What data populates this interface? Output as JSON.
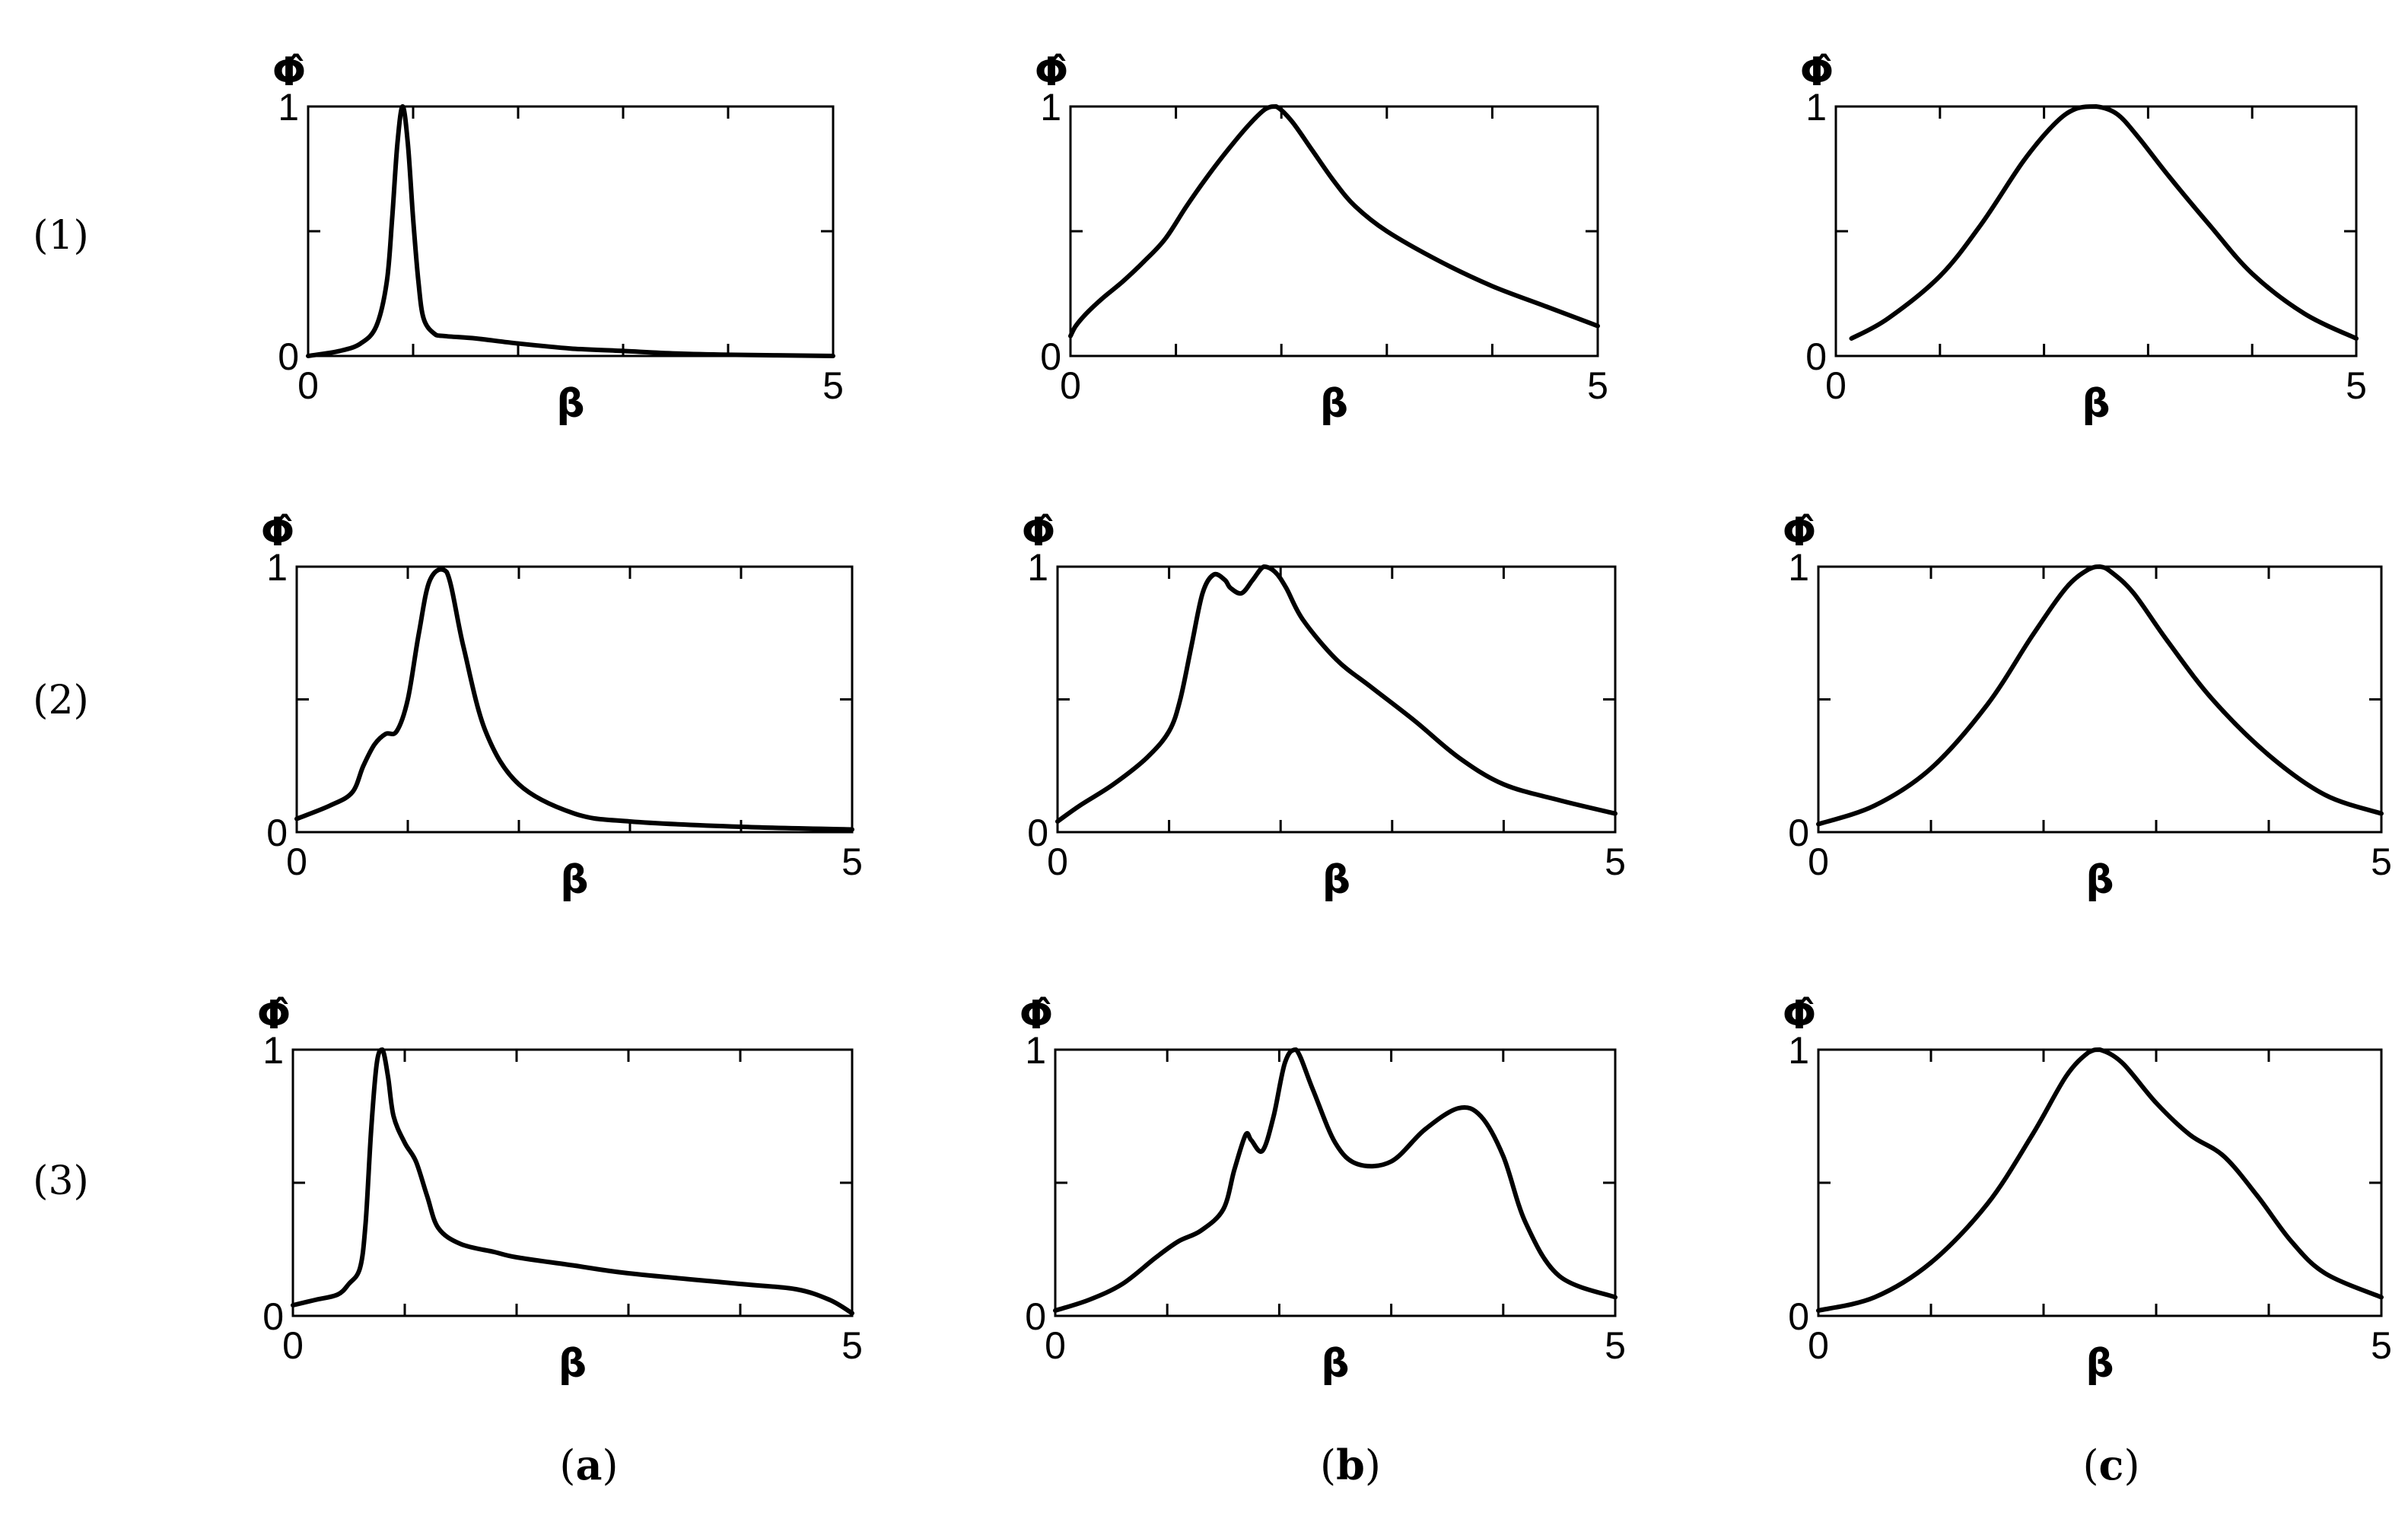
{
  "chart_data": [
    {
      "type": "line",
      "panel_row": "(1)",
      "panel_col": "(a)",
      "ylabel": "Φ̂",
      "xlabel": "β",
      "xlim": [
        0,
        5
      ],
      "ylim": [
        0,
        1
      ],
      "x": [
        0,
        0.3,
        0.5,
        0.65,
        0.75,
        0.8,
        0.85,
        0.9,
        0.95,
        1.0,
        1.05,
        1.1,
        1.2,
        1.3,
        1.6,
        2.0,
        2.5,
        3.0,
        3.5,
        4.0,
        5.0
      ],
      "y": [
        0.0,
        0.02,
        0.05,
        0.12,
        0.3,
        0.55,
        0.85,
        1.0,
        0.85,
        0.55,
        0.3,
        0.15,
        0.09,
        0.08,
        0.07,
        0.05,
        0.03,
        0.02,
        0.01,
        0.005,
        0.0
      ]
    },
    {
      "type": "line",
      "panel_row": "(1)",
      "panel_col": "(b)",
      "ylabel": "Φ̂",
      "xlabel": "β",
      "xlim": [
        0,
        5
      ],
      "ylim": [
        0,
        1
      ],
      "x": [
        0,
        0.05,
        0.15,
        0.3,
        0.5,
        0.7,
        0.9,
        1.1,
        1.3,
        1.5,
        1.7,
        1.85,
        1.95,
        2.1,
        2.3,
        2.5,
        2.7,
        3.0,
        3.5,
        4.0,
        4.5,
        5.0
      ],
      "y": [
        0.08,
        0.12,
        0.17,
        0.23,
        0.3,
        0.38,
        0.47,
        0.6,
        0.72,
        0.83,
        0.93,
        0.99,
        1.0,
        0.94,
        0.82,
        0.7,
        0.6,
        0.5,
        0.38,
        0.28,
        0.2,
        0.12
      ]
    },
    {
      "type": "line",
      "panel_row": "(1)",
      "panel_col": "(c)",
      "ylabel": "Φ̂",
      "xlabel": "β",
      "xlim": [
        0,
        5
      ],
      "ylim": [
        0,
        1
      ],
      "x": [
        0.15,
        0.5,
        1.0,
        1.4,
        1.8,
        2.1,
        2.3,
        2.5,
        2.7,
        2.9,
        3.2,
        3.6,
        4.0,
        4.5,
        5.0
      ],
      "y": [
        0.07,
        0.15,
        0.32,
        0.53,
        0.78,
        0.93,
        0.99,
        1.0,
        0.97,
        0.88,
        0.72,
        0.52,
        0.33,
        0.17,
        0.07
      ]
    },
    {
      "type": "line",
      "panel_row": "(2)",
      "panel_col": "(a)",
      "ylabel": "Φ̂",
      "xlabel": "β",
      "xlim": [
        0,
        5
      ],
      "ylim": [
        0,
        1
      ],
      "x": [
        0,
        0.3,
        0.5,
        0.6,
        0.7,
        0.8,
        0.9,
        1.0,
        1.1,
        1.2,
        1.35,
        1.5,
        1.7,
        2.0,
        2.5,
        3.0,
        4.0,
        5.0
      ],
      "y": [
        0.05,
        0.1,
        0.15,
        0.25,
        0.33,
        0.37,
        0.38,
        0.5,
        0.75,
        0.95,
        0.98,
        0.7,
        0.38,
        0.18,
        0.07,
        0.04,
        0.02,
        0.01
      ]
    },
    {
      "type": "line",
      "panel_row": "(2)",
      "panel_col": "(b)",
      "ylabel": "Φ̂",
      "xlabel": "β",
      "xlim": [
        0,
        5
      ],
      "ylim": [
        0,
        1
      ],
      "x": [
        0,
        0.2,
        0.5,
        0.8,
        1.0,
        1.1,
        1.2,
        1.3,
        1.4,
        1.5,
        1.55,
        1.65,
        1.75,
        1.85,
        1.95,
        2.05,
        2.2,
        2.5,
        2.8,
        3.2,
        3.6,
        4.0,
        4.5,
        5.0
      ],
      "y": [
        0.04,
        0.1,
        0.18,
        0.28,
        0.38,
        0.5,
        0.7,
        0.9,
        0.97,
        0.95,
        0.92,
        0.9,
        0.95,
        1.0,
        0.98,
        0.92,
        0.8,
        0.65,
        0.55,
        0.42,
        0.28,
        0.18,
        0.12,
        0.07
      ]
    },
    {
      "type": "line",
      "panel_row": "(2)",
      "panel_col": "(c)",
      "ylabel": "Φ̂",
      "xlabel": "β",
      "xlim": [
        0,
        5
      ],
      "ylim": [
        0,
        1
      ],
      "x": [
        0,
        0.5,
        1.0,
        1.5,
        1.9,
        2.2,
        2.4,
        2.5,
        2.6,
        2.8,
        3.1,
        3.5,
        4.0,
        4.5,
        5.0
      ],
      "y": [
        0.03,
        0.1,
        0.24,
        0.48,
        0.74,
        0.92,
        0.99,
        1.0,
        0.98,
        0.9,
        0.72,
        0.5,
        0.29,
        0.14,
        0.07
      ]
    },
    {
      "type": "line",
      "panel_row": "(3)",
      "panel_col": "(a)",
      "ylabel": "Φ̂",
      "xlabel": "β",
      "xlim": [
        0,
        5
      ],
      "ylim": [
        0,
        1
      ],
      "x": [
        0,
        0.2,
        0.4,
        0.5,
        0.6,
        0.65,
        0.7,
        0.75,
        0.8,
        0.85,
        0.9,
        1.0,
        1.1,
        1.2,
        1.3,
        1.5,
        1.8,
        2.0,
        2.5,
        3.0,
        4.0,
        4.5,
        4.8,
        5.0
      ],
      "y": [
        0.04,
        0.06,
        0.08,
        0.12,
        0.18,
        0.35,
        0.7,
        0.95,
        1.0,
        0.9,
        0.75,
        0.65,
        0.58,
        0.45,
        0.33,
        0.27,
        0.24,
        0.22,
        0.19,
        0.16,
        0.12,
        0.1,
        0.06,
        0.01
      ]
    },
    {
      "type": "line",
      "panel_row": "(3)",
      "panel_col": "(b)",
      "ylabel": "Φ̂",
      "xlabel": "β",
      "xlim": [
        0,
        5
      ],
      "ylim": [
        0,
        1
      ],
      "x": [
        0,
        0.3,
        0.6,
        0.9,
        1.1,
        1.3,
        1.5,
        1.6,
        1.7,
        1.75,
        1.85,
        1.95,
        2.05,
        2.15,
        2.3,
        2.5,
        2.7,
        3.0,
        3.3,
        3.6,
        3.8,
        4.0,
        4.2,
        4.5,
        5.0
      ],
      "y": [
        0.02,
        0.06,
        0.12,
        0.22,
        0.28,
        0.32,
        0.4,
        0.55,
        0.68,
        0.66,
        0.62,
        0.75,
        0.95,
        1.0,
        0.85,
        0.65,
        0.57,
        0.58,
        0.7,
        0.78,
        0.75,
        0.6,
        0.35,
        0.15,
        0.07
      ]
    },
    {
      "type": "line",
      "panel_row": "(3)",
      "panel_col": "(c)",
      "ylabel": "Φ̂",
      "xlabel": "β",
      "xlim": [
        0,
        5
      ],
      "ylim": [
        0,
        1
      ],
      "x": [
        0,
        0.5,
        1.0,
        1.5,
        1.9,
        2.2,
        2.4,
        2.5,
        2.7,
        3.0,
        3.3,
        3.6,
        3.9,
        4.2,
        4.5,
        5.0
      ],
      "y": [
        0.02,
        0.07,
        0.2,
        0.42,
        0.68,
        0.9,
        0.99,
        1.0,
        0.95,
        0.8,
        0.68,
        0.6,
        0.45,
        0.28,
        0.16,
        0.07
      ]
    }
  ],
  "row_labels": [
    "(1)",
    "(2)",
    "(3)"
  ],
  "col_labels": [
    {
      "open": "(",
      "letter": "a",
      "close": ")"
    },
    {
      "open": "(",
      "letter": "b",
      "close": ")"
    },
    {
      "open": "(",
      "letter": "c",
      "close": ")"
    }
  ],
  "tick_labels": {
    "x_min": "0",
    "x_max": "5",
    "y_min": "0",
    "y_max": "1"
  }
}
